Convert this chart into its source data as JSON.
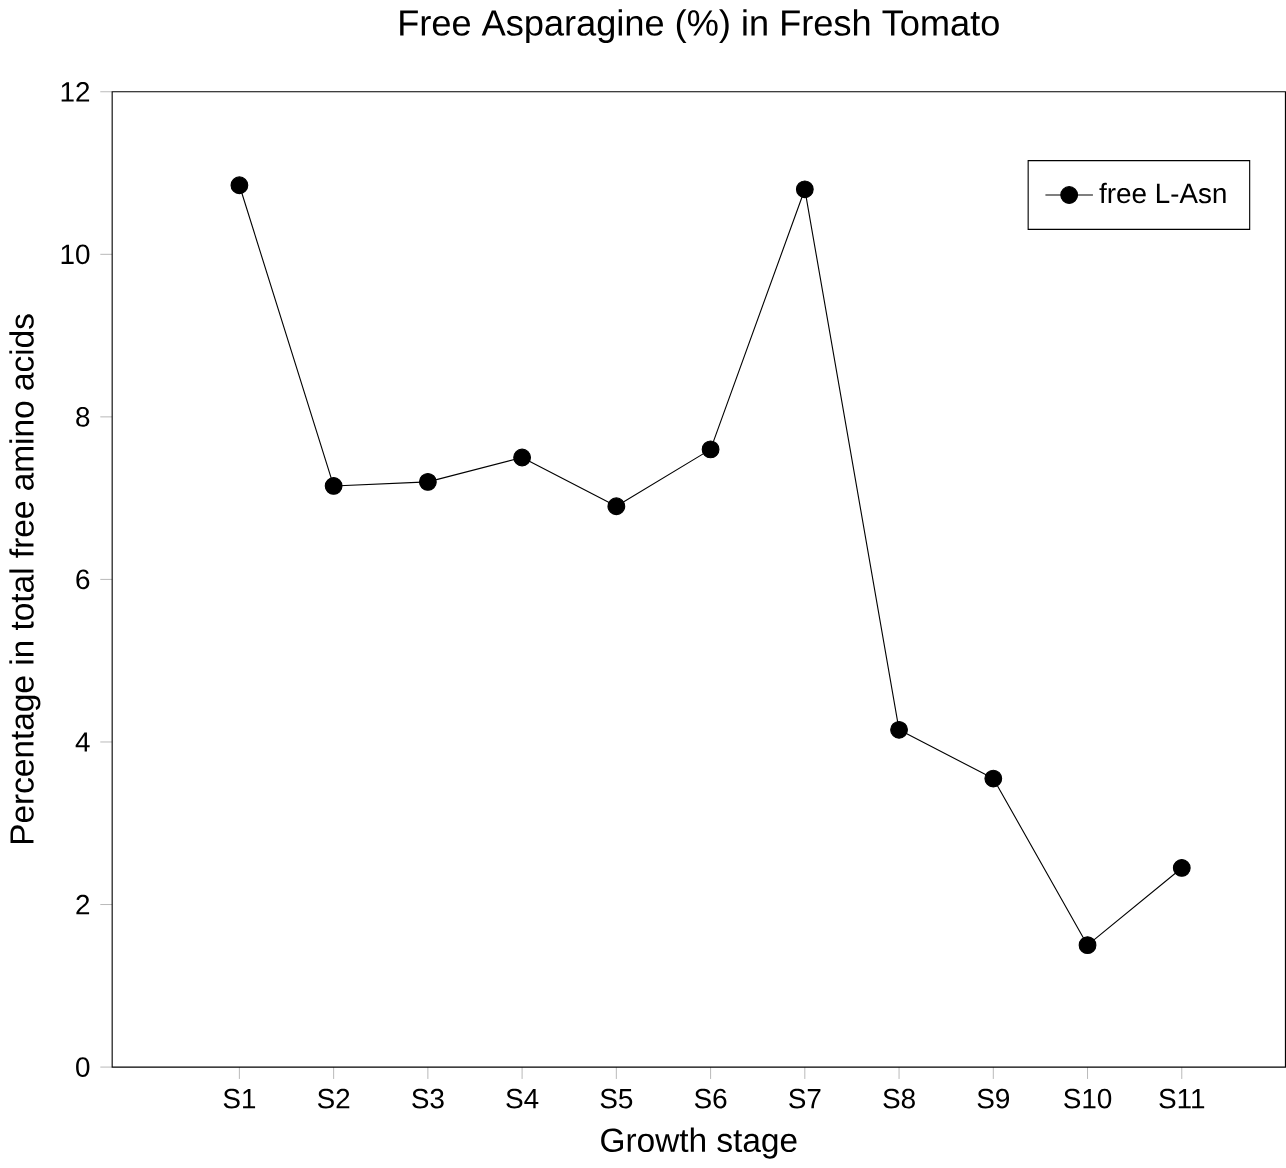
{
  "chart_data": {
    "type": "line",
    "title": "Free Asparagine (%) in Fresh Tomato",
    "xlabel": "Growth stage",
    "ylabel": "Percentage in total free amino acids",
    "categories": [
      "S1",
      "S2",
      "S3",
      "S4",
      "S5",
      "S6",
      "S7",
      "S8",
      "S9",
      "S10",
      "S11"
    ],
    "series": [
      {
        "name": "free L-Asn",
        "color": "#000000",
        "values": [
          10.85,
          7.15,
          7.2,
          7.5,
          6.9,
          7.6,
          10.8,
          4.15,
          3.55,
          1.5,
          2.45
        ]
      }
    ],
    "ylim": [
      0,
      12
    ],
    "yticks": [
      0,
      2,
      4,
      6,
      8,
      10,
      12
    ],
    "marker": "circle",
    "line_style": "solid",
    "legend": "top right",
    "grid": false
  }
}
